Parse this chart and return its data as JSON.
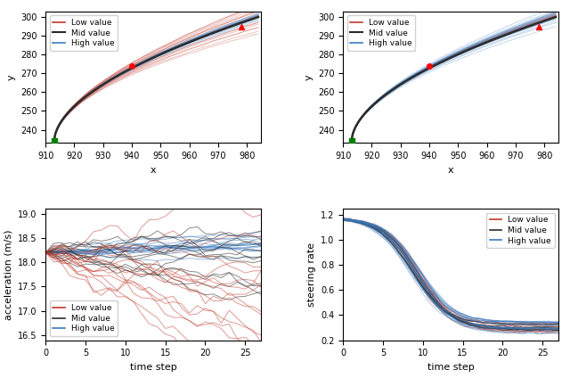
{
  "top_left": {
    "x_start": 913,
    "x_end": 984,
    "y_start": 234,
    "y_end": 300,
    "xlim": [
      910,
      985
    ],
    "ylim": [
      233,
      303
    ],
    "xlabel": "x",
    "ylabel": "y",
    "green_point": [
      913,
      234
    ],
    "red_circle": [
      940,
      274
    ],
    "red_triangle": [
      978,
      295
    ],
    "n_low": 18,
    "n_high": 12,
    "spread_low": 4.5,
    "spread_high": 1.5,
    "legend_low": "Low value",
    "legend_mid": "Mid value",
    "legend_high": "High value"
  },
  "top_right": {
    "x_start": 913,
    "x_end": 984,
    "y_start": 234,
    "y_end": 300,
    "xlim": [
      910,
      985
    ],
    "ylim": [
      233,
      303
    ],
    "xlabel": "x",
    "ylabel": "y",
    "green_point": [
      913,
      234
    ],
    "red_circle": [
      940,
      274
    ],
    "red_triangle": [
      978,
      295
    ],
    "n_low": 8,
    "n_high": 22,
    "spread_low": 1.2,
    "spread_high": 4.5,
    "legend_low": "Low value",
    "legend_mid": "Mid value",
    "legend_high": "High value"
  },
  "bot_left": {
    "xlim": [
      0,
      27
    ],
    "ylim": [
      16.4,
      19.1
    ],
    "xlabel": "time step",
    "ylabel": "acceleration (m/s)",
    "n_low": 15,
    "n_mid": 12,
    "n_high": 15,
    "start_val": 18.2,
    "legend_low": "Low value",
    "legend_mid": "Mid value",
    "legend_high": "High value"
  },
  "bot_right": {
    "xlim": [
      0,
      27
    ],
    "ylim": [
      0.2,
      1.25
    ],
    "xlabel": "time step",
    "ylabel": "steering rate",
    "n_low": 10,
    "n_mid": 8,
    "n_high": 20,
    "legend_low": "Low value",
    "legend_mid": "Mid value",
    "legend_high": "High value"
  },
  "colors": {
    "low": "#c0392b",
    "mid": "#2c2c2c",
    "high": "#3a7bbf",
    "dashed": "#222222"
  }
}
